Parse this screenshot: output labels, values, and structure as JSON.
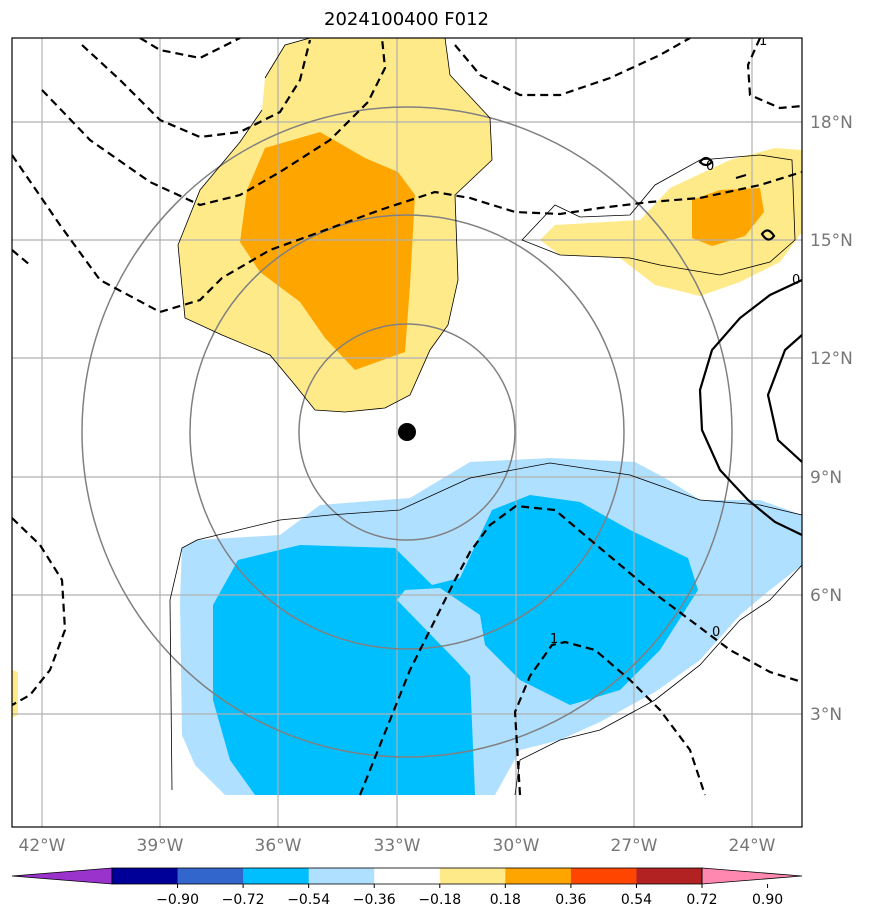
{
  "title": "2024100400 F012",
  "map": {
    "extent": {
      "lon": [
        -42.7,
        -23.3
      ],
      "lat": [
        0.8,
        20.3
      ]
    },
    "lon_ticks": [
      {
        "value": -42,
        "label": "42°W"
      },
      {
        "value": -39,
        "label": "39°W"
      },
      {
        "value": -36,
        "label": "36°W"
      },
      {
        "value": -33,
        "label": "33°W"
      },
      {
        "value": -30,
        "label": "30°W"
      },
      {
        "value": -27,
        "label": "27°W"
      },
      {
        "value": -24,
        "label": "24°W"
      }
    ],
    "lat_ticks": [
      {
        "value": 3,
        "label": "3°N"
      },
      {
        "value": 6,
        "label": "6°N"
      },
      {
        "value": 9,
        "label": "9°N"
      },
      {
        "value": 12,
        "label": "12°N"
      },
      {
        "value": 15,
        "label": "15°N"
      },
      {
        "value": 18,
        "label": "18°N"
      }
    ],
    "storm_center": {
      "lon": -32.75,
      "lat": 10.1
    },
    "ring_radii_deg": [
      2.75,
      5.5,
      8.2
    ]
  },
  "contour_labels": [
    {
      "text": "1",
      "lon": -23.5,
      "lat": 20.0
    },
    {
      "text": "0",
      "lon": -24.6,
      "lat": 16.7
    },
    {
      "text": "0",
      "lon": -23.5,
      "lat": 14.1
    },
    {
      "text": "0",
      "lon": -25.0,
      "lat": 4.8
    },
    {
      "text": "1",
      "lon": -28.9,
      "lat": 4.6
    }
  ],
  "colorbar": {
    "colors": [
      "#9933cc",
      "#000099",
      "#3366cc",
      "#00bfff",
      "#b0e0ff",
      "#ffffff",
      "#ffea8a",
      "#ffa500",
      "#ff4500",
      "#b22222",
      "#ff88b0"
    ],
    "tick_labels": [
      "−0.90",
      "−0.72",
      "−0.54",
      "−0.36",
      "−0.18",
      "0.18",
      "0.36",
      "0.54",
      "0.72",
      "0.90"
    ]
  },
  "shading": {
    "light_yellow": "#ffea8a",
    "orange": "#ffa500",
    "light_blue": "#b0e0ff",
    "deep_sky_blue": "#00bfff"
  }
}
